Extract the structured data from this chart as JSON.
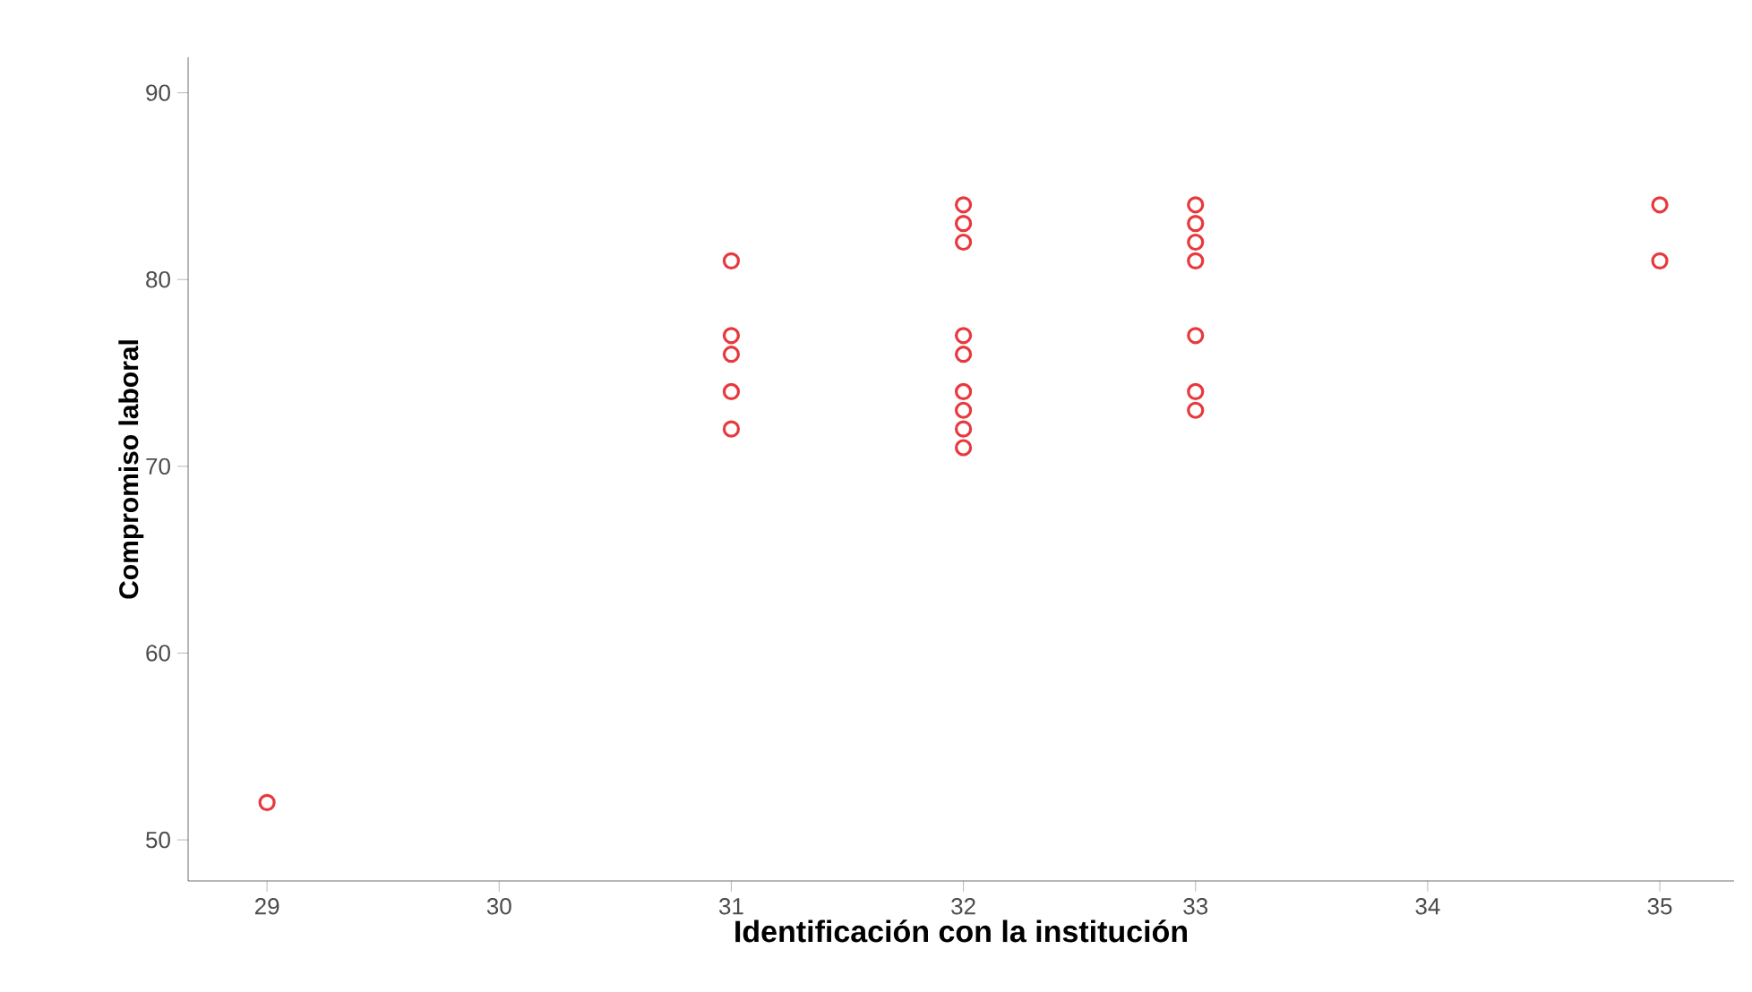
{
  "chart_data": {
    "type": "scatter",
    "xlabel": "Identificación con la institución",
    "ylabel": "Compromiso laboral",
    "x": [
      29,
      31,
      31,
      31,
      31,
      31,
      32,
      32,
      32,
      32,
      32,
      32,
      32,
      32,
      32,
      33,
      33,
      33,
      33,
      33,
      33,
      33,
      35,
      35
    ],
    "values": [
      52,
      81,
      77,
      76,
      74,
      72,
      84,
      83,
      82,
      77,
      76,
      74,
      73,
      72,
      71,
      84,
      83,
      82,
      81,
      77,
      74,
      73,
      84,
      81
    ],
    "color": "#e8383d",
    "marker": "circle",
    "xlim": [
      28.66,
      35.32
    ],
    "xticks": [
      29,
      30,
      31,
      32,
      33,
      34,
      35
    ],
    "ylim": [
      47.8,
      91.9
    ],
    "yticks": [
      50,
      60,
      70,
      80,
      90
    ],
    "grid": false
  }
}
